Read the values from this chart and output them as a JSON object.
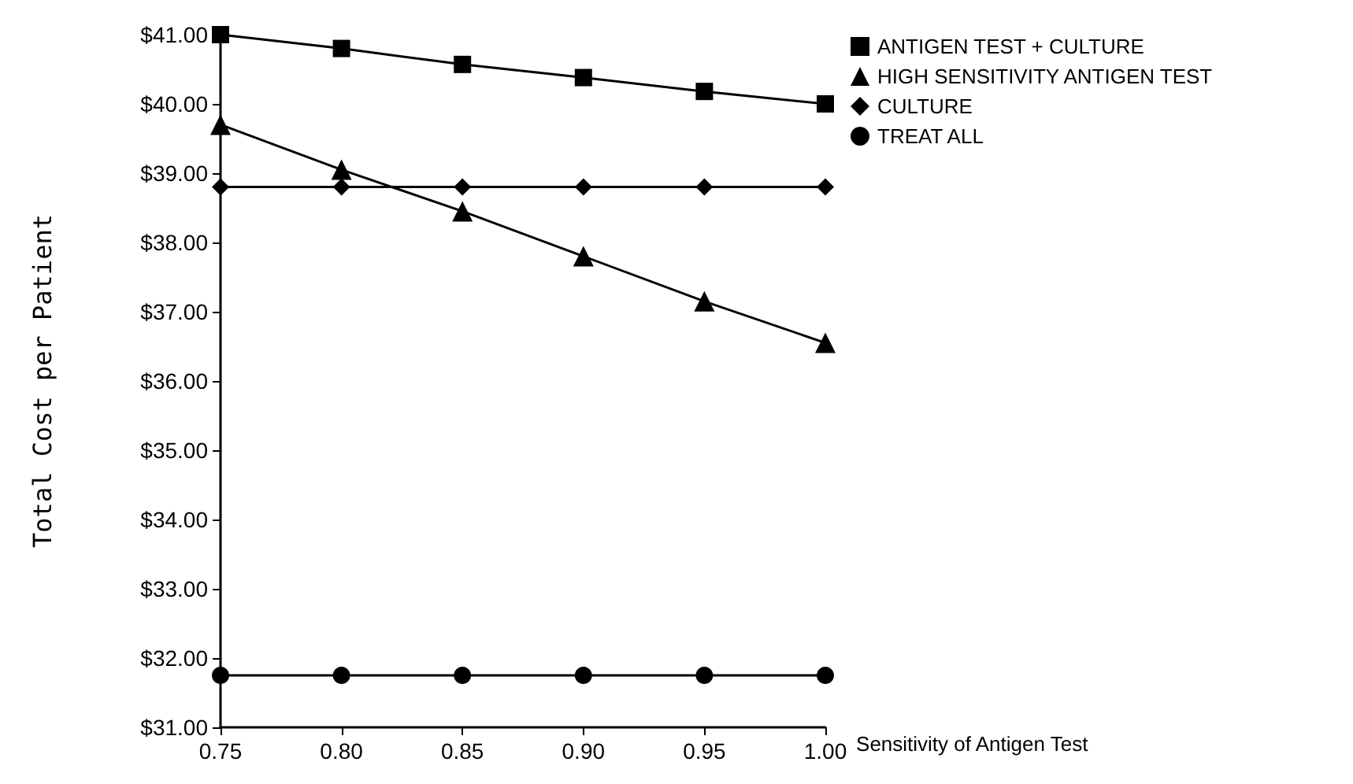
{
  "chart_data": {
    "type": "line",
    "xlabel": "Sensitivity of Antigen Test",
    "ylabel": "Total Cost per Patient",
    "x": [
      0.75,
      0.8,
      0.85,
      0.9,
      0.95,
      1.0
    ],
    "series": [
      {
        "name": "ANTIGEN TEST + CULTURE",
        "color": "#000000",
        "marker": "square",
        "values": [
          41.0,
          40.8,
          40.57,
          40.38,
          40.18,
          40.0
        ]
      },
      {
        "name": "HIGH SENSITIVITY ANTIGEN TEST",
        "color": "#000000",
        "marker": "triangle",
        "values": [
          39.7,
          39.05,
          38.45,
          37.8,
          37.15,
          36.55
        ]
      },
      {
        "name": "CULTURE",
        "color": "#000000",
        "marker": "diamond",
        "values": [
          38.8,
          38.8,
          38.8,
          38.8,
          38.8,
          38.8
        ]
      },
      {
        "name": "TREAT ALL",
        "color": "#000000",
        "marker": "circle",
        "values": [
          31.75,
          31.75,
          31.75,
          31.75,
          31.75,
          31.75
        ]
      }
    ],
    "xlim": [
      0.75,
      1.0
    ],
    "xticks": [
      {
        "value": 0.75,
        "label": "0.75"
      },
      {
        "value": 0.8,
        "label": "0.80"
      },
      {
        "value": 0.85,
        "label": "0.85"
      },
      {
        "value": 0.9,
        "label": "0.90"
      },
      {
        "value": 0.95,
        "label": "0.95"
      },
      {
        "value": 1.0,
        "label": "1.00"
      }
    ],
    "ylim": [
      31,
      41
    ],
    "yticks": [
      {
        "value": 31,
        "label": "$31.00"
      },
      {
        "value": 32,
        "label": "$32.00"
      },
      {
        "value": 33,
        "label": "$33.00"
      },
      {
        "value": 34,
        "label": "$34.00"
      },
      {
        "value": 35,
        "label": "$35.00"
      },
      {
        "value": 36,
        "label": "$36.00"
      },
      {
        "value": 37,
        "label": "$37.00"
      },
      {
        "value": 38,
        "label": "$38.00"
      },
      {
        "value": 39,
        "label": "$39.00"
      },
      {
        "value": 40,
        "label": "$40.00"
      },
      {
        "value": 41,
        "label": "$41.00"
      }
    ],
    "grid": false,
    "legend": "top right",
    "line_style": "solid"
  }
}
